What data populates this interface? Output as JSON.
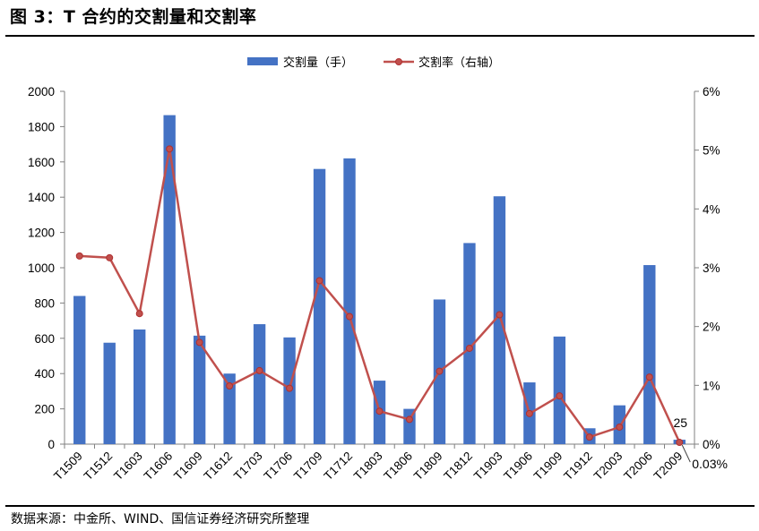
{
  "title": "图 3：T 合约的交割量和交割率",
  "source": "数据来源：中金所、WIND、国信证券经济研究所整理",
  "chart_data": {
    "type": "bar",
    "categories": [
      "T1509",
      "T1512",
      "T1603",
      "T1606",
      "T1609",
      "T1612",
      "T1703",
      "T1706",
      "T1709",
      "T1712",
      "T1803",
      "T1806",
      "T1809",
      "T1812",
      "T1903",
      "T1906",
      "T1909",
      "T1912",
      "T2003",
      "T2006",
      "T2009"
    ],
    "series": [
      {
        "name": "交割量（手）",
        "kind": "bar",
        "axis": "left",
        "values": [
          840,
          575,
          650,
          1865,
          615,
          400,
          680,
          605,
          1560,
          1620,
          360,
          200,
          820,
          1140,
          1405,
          350,
          610,
          90,
          220,
          1015,
          25
        ]
      },
      {
        "name": "交割率（右轴）",
        "kind": "line",
        "axis": "right",
        "values": [
          3.2,
          3.17,
          2.22,
          5.02,
          1.73,
          0.99,
          1.25,
          0.95,
          2.78,
          2.17,
          0.56,
          0.42,
          1.24,
          1.63,
          2.2,
          0.52,
          0.82,
          0.12,
          0.29,
          1.14,
          0.03
        ]
      }
    ],
    "y_left": {
      "min": 0,
      "max": 2000,
      "step": 200,
      "ticks": [
        "0",
        "200",
        "400",
        "600",
        "800",
        "1000",
        "1200",
        "1400",
        "1600",
        "1800",
        "2000"
      ]
    },
    "y_right": {
      "min": 0,
      "max": 6,
      "step": 1,
      "ticks": [
        "0%",
        "1%",
        "2%",
        "3%",
        "4%",
        "5%",
        "6%"
      ]
    },
    "annotations": [
      {
        "text": "25",
        "category": "T2009",
        "series": "交割量（手）"
      },
      {
        "text": "0.03%",
        "category": "T2009",
        "series": "交割率（右轴）"
      }
    ],
    "colors": {
      "bar": "#4472c4",
      "line": "#c0504d",
      "marker": "#c0504d",
      "axis": "#808080"
    },
    "legend_position": "top-center"
  }
}
